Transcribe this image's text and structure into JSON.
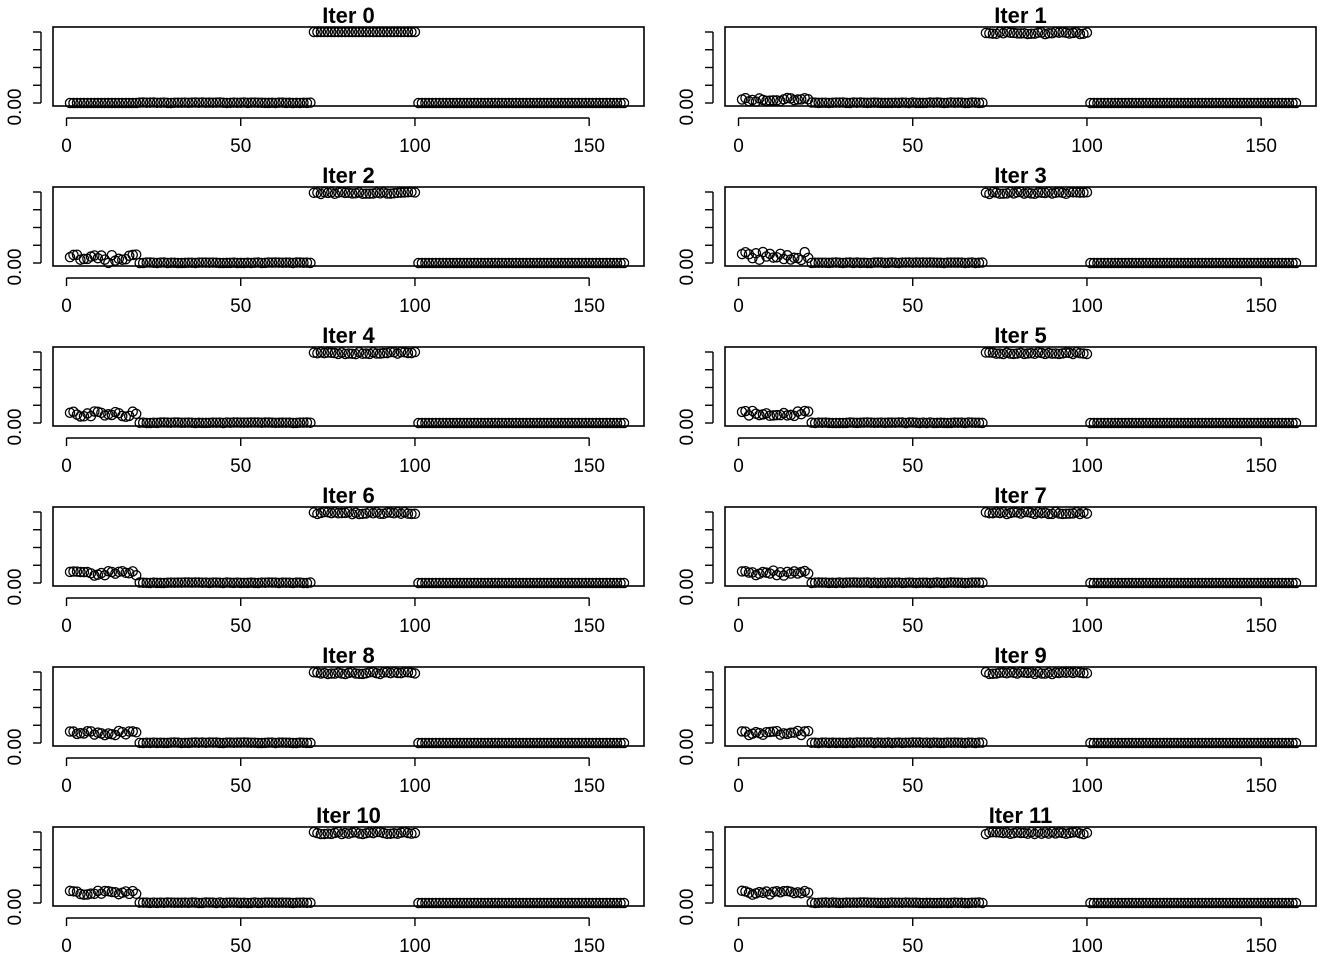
{
  "chart_data": {
    "type": "scatter",
    "layout": {
      "rows": 6,
      "cols": 2
    },
    "x": {
      "min": 1,
      "max": 160,
      "ticks": [
        0,
        50,
        100,
        150
      ]
    },
    "y": {
      "range": [
        0.0,
        0.2
      ],
      "ticks": [
        0.0,
        0.05,
        0.1,
        0.15,
        0.2
      ],
      "labeled_ticks": {
        "0": "0.00"
      }
    },
    "marker": "open-circle",
    "color": "#000000",
    "panels": [
      {
        "title": "Iter 0",
        "iteration": 0,
        "early_level": 0.0,
        "early_variation": 0.0
      },
      {
        "title": "Iter 1",
        "iteration": 1,
        "early_level": 0.008,
        "early_variation": 0.006
      },
      {
        "title": "Iter 2",
        "iteration": 2,
        "early_level": 0.012,
        "early_variation": 0.012
      },
      {
        "title": "Iter 3",
        "iteration": 3,
        "early_level": 0.02,
        "early_variation": 0.012
      },
      {
        "title": "Iter 4",
        "iteration": 4,
        "early_level": 0.025,
        "early_variation": 0.008
      },
      {
        "title": "Iter 5",
        "iteration": 5,
        "early_level": 0.027,
        "early_variation": 0.008
      },
      {
        "title": "Iter 6",
        "iteration": 6,
        "early_level": 0.027,
        "early_variation": 0.007
      },
      {
        "title": "Iter 7",
        "iteration": 7,
        "early_level": 0.028,
        "early_variation": 0.007
      },
      {
        "title": "Iter 8",
        "iteration": 8,
        "early_level": 0.028,
        "early_variation": 0.006
      },
      {
        "title": "Iter 9",
        "iteration": 9,
        "early_level": 0.028,
        "early_variation": 0.006
      },
      {
        "title": "Iter 10",
        "iteration": 10,
        "early_level": 0.029,
        "early_variation": 0.006
      },
      {
        "title": "Iter 11",
        "iteration": 11,
        "early_level": 0.029,
        "early_variation": 0.006
      }
    ],
    "segments": [
      {
        "x_from": 1,
        "x_to": 20,
        "description": "early segment, rises with iteration"
      },
      {
        "x_from": 21,
        "x_to": 70,
        "value": 0.0
      },
      {
        "x_from": 71,
        "x_to": 100,
        "value": 0.2
      },
      {
        "x_from": 101,
        "x_to": 160,
        "value": 0.0
      }
    ]
  }
}
